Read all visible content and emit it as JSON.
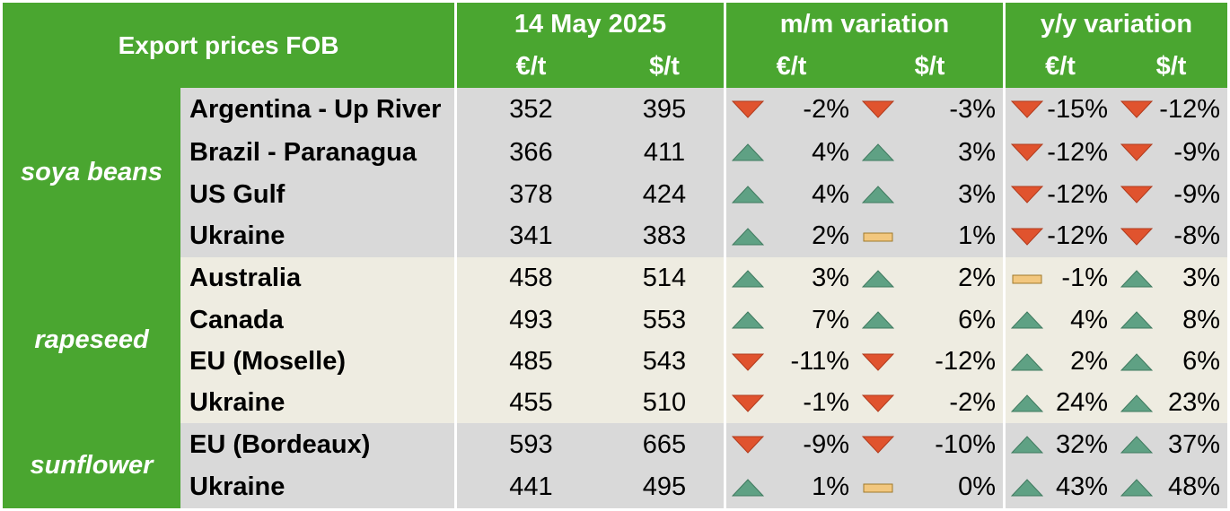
{
  "header": {
    "title": "Export prices FOB",
    "date_label": "14 May 2025",
    "mm_label": "m/m variation",
    "yy_label": "y/y variation",
    "unit_eur": "€/t",
    "unit_usd": "$/t"
  },
  "colors": {
    "header_green": "#4aa630",
    "soy_bg": "#d9d9d9",
    "rape_bg": "#eeece1",
    "up_fill": "#5fa184",
    "down_fill": "#e0532e",
    "flat_fill": "#f2c77e"
  },
  "groups": [
    {
      "name": "soya beans",
      "rows": [
        {
          "origin": "Argentina - Up River",
          "eur": "352",
          "usd": "395",
          "mm_eur": "-2%",
          "mm_eur_dir": "down",
          "mm_usd": "-3%",
          "mm_usd_dir": "down",
          "yy_eur": "-15%",
          "yy_eur_dir": "down",
          "yy_usd": "-12%",
          "yy_usd_dir": "down"
        },
        {
          "origin": "Brazil - Paranagua",
          "eur": "366",
          "usd": "411",
          "mm_eur": "4%",
          "mm_eur_dir": "up",
          "mm_usd": "3%",
          "mm_usd_dir": "up",
          "yy_eur": "-12%",
          "yy_eur_dir": "down",
          "yy_usd": "-9%",
          "yy_usd_dir": "down"
        },
        {
          "origin": "US Gulf",
          "eur": "378",
          "usd": "424",
          "mm_eur": "4%",
          "mm_eur_dir": "up",
          "mm_usd": "3%",
          "mm_usd_dir": "up",
          "yy_eur": "-12%",
          "yy_eur_dir": "down",
          "yy_usd": "-9%",
          "yy_usd_dir": "down"
        },
        {
          "origin": "Ukraine",
          "eur": "341",
          "usd": "383",
          "mm_eur": "2%",
          "mm_eur_dir": "up",
          "mm_usd": "1%",
          "mm_usd_dir": "flat",
          "yy_eur": "-12%",
          "yy_eur_dir": "down",
          "yy_usd": "-8%",
          "yy_usd_dir": "down"
        }
      ]
    },
    {
      "name": "rapeseed",
      "rows": [
        {
          "origin": "Australia",
          "eur": "458",
          "usd": "514",
          "mm_eur": "3%",
          "mm_eur_dir": "up",
          "mm_usd": "2%",
          "mm_usd_dir": "up",
          "yy_eur": "-1%",
          "yy_eur_dir": "flat",
          "yy_usd": "3%",
          "yy_usd_dir": "up"
        },
        {
          "origin": "Canada",
          "eur": "493",
          "usd": "553",
          "mm_eur": "7%",
          "mm_eur_dir": "up",
          "mm_usd": "6%",
          "mm_usd_dir": "up",
          "yy_eur": "4%",
          "yy_eur_dir": "up",
          "yy_usd": "8%",
          "yy_usd_dir": "up"
        },
        {
          "origin": "EU (Moselle)",
          "eur": "485",
          "usd": "543",
          "mm_eur": "-11%",
          "mm_eur_dir": "down",
          "mm_usd": "-12%",
          "mm_usd_dir": "down",
          "yy_eur": "2%",
          "yy_eur_dir": "up",
          "yy_usd": "6%",
          "yy_usd_dir": "up"
        },
        {
          "origin": "Ukraine",
          "eur": "455",
          "usd": "510",
          "mm_eur": "-1%",
          "mm_eur_dir": "down",
          "mm_usd": "-2%",
          "mm_usd_dir": "down",
          "yy_eur": "24%",
          "yy_eur_dir": "up",
          "yy_usd": "23%",
          "yy_usd_dir": "up"
        }
      ]
    },
    {
      "name": "sunflower",
      "rows": [
        {
          "origin": "EU (Bordeaux)",
          "eur": "593",
          "usd": "665",
          "mm_eur": "-9%",
          "mm_eur_dir": "down",
          "mm_usd": "-10%",
          "mm_usd_dir": "down",
          "yy_eur": "32%",
          "yy_eur_dir": "up",
          "yy_usd": "37%",
          "yy_usd_dir": "up"
        },
        {
          "origin": "Ukraine",
          "eur": "441",
          "usd": "495",
          "mm_eur": "1%",
          "mm_eur_dir": "up",
          "mm_usd": "0%",
          "mm_usd_dir": "flat",
          "yy_eur": "43%",
          "yy_eur_dir": "up",
          "yy_usd": "48%",
          "yy_usd_dir": "up"
        }
      ]
    }
  ]
}
